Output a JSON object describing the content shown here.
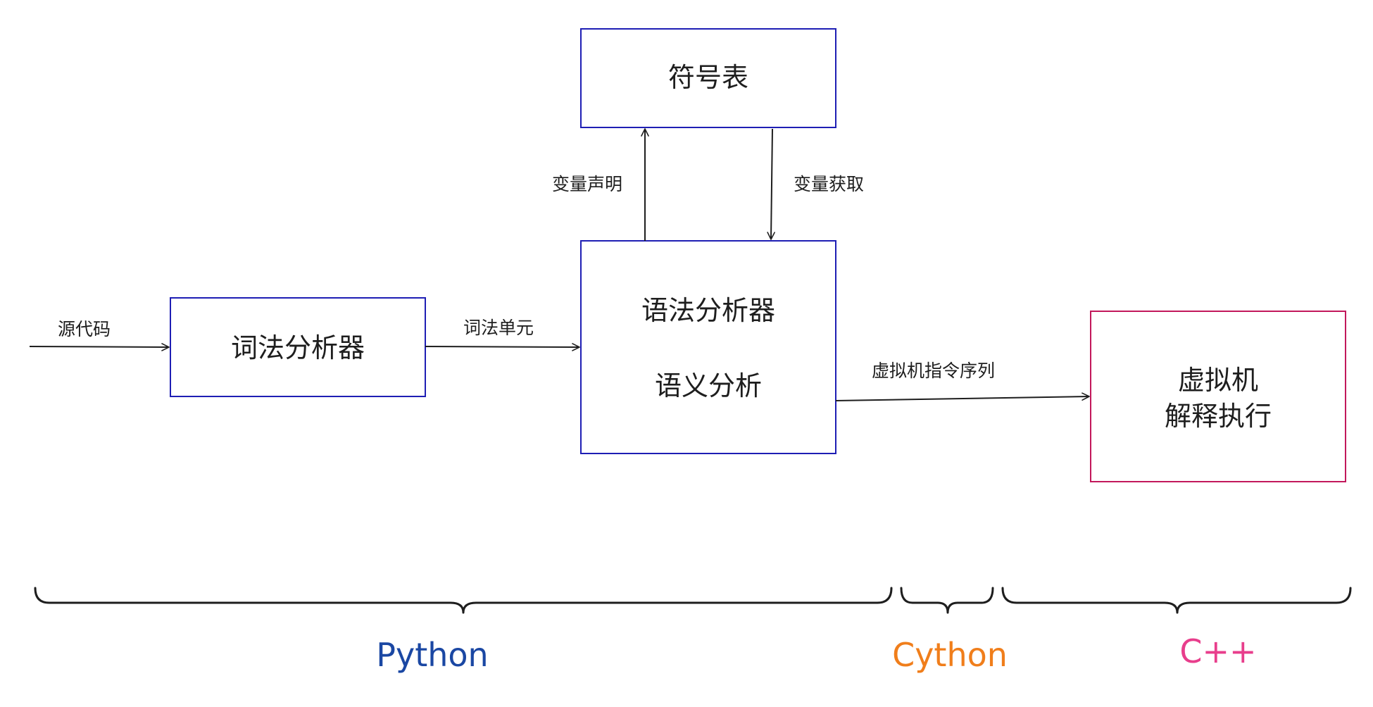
{
  "colors": {
    "stroke": "#1e1e1e",
    "box_blue": "#1e1eb4",
    "box_red": "#c2185b",
    "python": "#1a47a3",
    "cython": "#f07e1b",
    "cpp": "#e83e8c"
  },
  "boxes": {
    "symbol_table": "符号表",
    "lexer": "词法分析器",
    "parser_line1": "语法分析器",
    "parser_line2": "语义分析",
    "vm_line1": "虚拟机",
    "vm_line2": "解释执行"
  },
  "edges": {
    "source_code": "源代码",
    "tokens": "词法单元",
    "var_declare": "变量声明",
    "var_fetch": "变量获取",
    "vm_instructions": "虚拟机指令序列"
  },
  "languages": {
    "python": "Python",
    "cython": "Cython",
    "cpp": "C++"
  }
}
